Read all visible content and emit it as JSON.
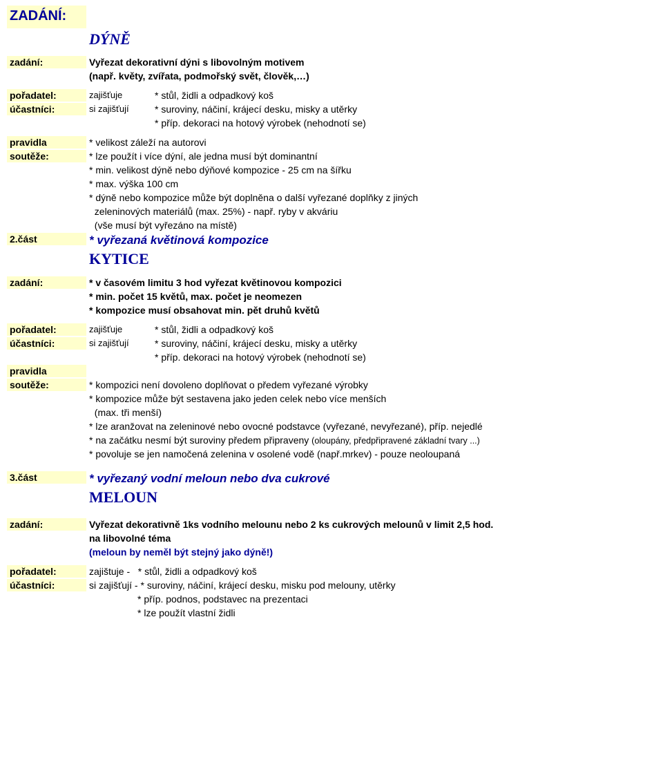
{
  "colors": {
    "label_bg": "#ffffcc",
    "heading_color": "#000099",
    "text_color": "#000000",
    "page_bg": "#ffffff"
  },
  "typography": {
    "body_family": "Arial",
    "body_size_pt": 10.5,
    "heading_family": "Comic Sans MS",
    "heading_size_pt": 15,
    "subheading_size_pt": 16,
    "part_title_size_pt": 13
  },
  "header": {
    "zadani_label": "ZADÁNÍ:",
    "title1": "DÝNĚ"
  },
  "s1": {
    "zadani_label": "zadání:",
    "zadani_line1": "Vyřezat dekorativní dýni s libovolným motivem",
    "zadani_line2": "(např. květy, zvířata, podmořský svět, člověk,…)",
    "poradatel_label": "pořadatel:",
    "poradatel_mid": "zajišťuje",
    "poradatel_text": "* stůl, židli a odpadkový koš",
    "ucastnici_label": "účastníci:",
    "ucastnici_mid": "si zajišťují",
    "ucastnici_text1": "* suroviny, náčiní, krájecí desku, misky a utěrky",
    "ucastnici_text2": "* příp. dekoraci na hotový výrobek (nehodnotí se)",
    "pravidla_label1": "pravidla",
    "pravidla_label2": "soutěže:",
    "pravidla_l1": "* velikost záleží na autorovi",
    "pravidla_l2": "* lze použít i více dýní, ale jedna musí být dominantní",
    "pravidla_l3": "* min. velikost dýně nebo dýňové kompozice  - 25 cm na šířku",
    "pravidla_l4": "* max. výška 100 cm",
    "pravidla_l5": "* dýně nebo kompozice může být doplněna o další vyřezané doplňky z jiných",
    "pravidla_l5b": "  zeleninových materiálů (max. 25%) - např. ryby v akváriu",
    "pravidla_l5c": "  (vše musí být vyřezáno na místě)"
  },
  "s2": {
    "part_label": "2.část",
    "part_title": "* vyřezaná květinová kompozice",
    "heading": "KYTICE",
    "zadani_label": "zadání:",
    "zadani_l1": "* v časovém limitu 3 hod vyřezat květinovou kompozici",
    "zadani_l2": "* min. počet 15 květů, max. počet je neomezen",
    "zadani_l3": "* kompozice musí obsahovat min. pět druhů květů",
    "poradatel_label": "pořadatel:",
    "poradatel_mid": "zajišťuje",
    "poradatel_text": "* stůl, židli a odpadkový koš",
    "ucastnici_label": "účastníci:",
    "ucastnici_mid": "si zajišťují",
    "ucastnici_text1": "* suroviny, náčiní, krájecí desku, misky a utěrky",
    "ucastnici_text2": "* příp. dekoraci na hotový výrobek (nehodnotí se)",
    "pravidla_label1": "pravidla",
    "pravidla_label2": "soutěže:",
    "pr_l1": "* kompozici není dovoleno doplňovat o předem vyřezané výrobky",
    "pr_l2": "* kompozice může být sestavena jako jeden celek nebo více menších",
    "pr_l2b": "  (max. tři menší)",
    "pr_l3": "* lze aranžovat na zeleninové nebo ovocné podstavce (vyřezané, nevyřezané), příp. nejedlé",
    "pr_l4a": "* na začátku nesmí být suroviny předem připraveny ",
    "pr_l4b": "(oloupány, předpřipravené základní tvary ...)",
    "pr_l5": "* povoluje se jen namočená zelenina v osolené vodě (např.mrkev) - pouze neoloupaná"
  },
  "s3": {
    "part_label": "3.část",
    "part_title": "* vyřezaný vodní meloun nebo dva cukrové",
    "heading": "MELOUN",
    "zadani_label": "zadání:",
    "zadani_l1": "Vyřezat dekorativně 1ks vodního melounu nebo 2 ks cukrových melounů v limit 2,5 hod.",
    "zadani_l2": "na libovolné téma",
    "zadani_l3": "(meloun by neměl být stejný jako dýně!)",
    "poradatel_label": "pořadatel:",
    "poradatel_text": "zajištuje -   * stůl, židli a odpadkový koš",
    "ucastnici_label": "účastníci:",
    "uc_l1": "si zajišťují - * suroviny, náčiní, krájecí desku, misku pod melouny, utěrky",
    "uc_l2": "                  * příp. podnos, podstavec na prezentaci",
    "uc_l3": "                  * lze použít vlastní židli"
  }
}
